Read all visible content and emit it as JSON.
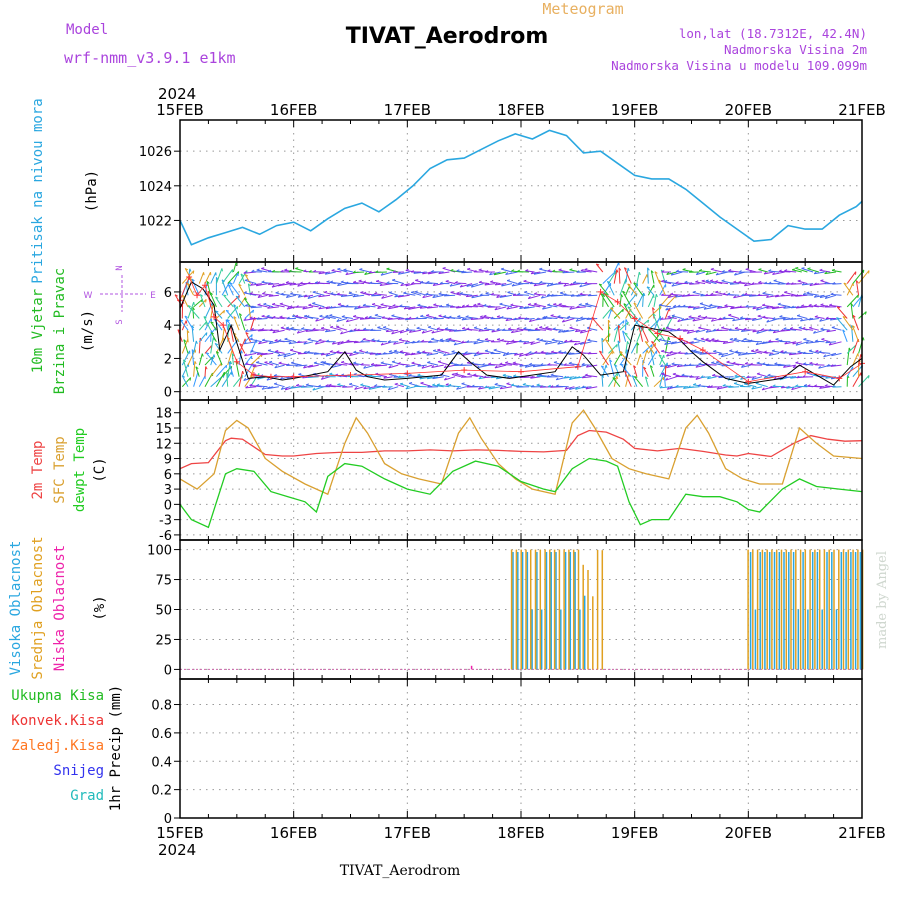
{
  "header": {
    "model_label": "Model",
    "model_name": "wrf-nmm_v3.9.1  e1km",
    "subtitle": "Meteogram",
    "station": "TIVAT_Aerodrom",
    "lonlat": "lon,lat (18.7312E, 42.4N)",
    "elevation": "Nadmorska Visina 2m",
    "model_elevation": "Nadmorska Visina u modelu 109.099m",
    "footer_station": "TIVAT_Aerodrom",
    "credit": "made by Angel"
  },
  "time_axis": {
    "year_top": "2024",
    "year_bottom": "2024",
    "labels": [
      "15FEB",
      "16FEB",
      "17FEB",
      "18FEB",
      "19FEB",
      "20FEB",
      "21FEB"
    ],
    "range_days": [
      0,
      6
    ]
  },
  "colors": {
    "pressure": "#2aa7e0",
    "wind_green": "#22bb22",
    "wind_purple": "#8a2be2",
    "wind_speed": "#000000",
    "wind_gust": "#ff3333",
    "temp2m": "#ee4444",
    "sfc_temp": "#d9a030",
    "dewpoint": "#22cc22",
    "cloud_high": "#2aa7e0",
    "cloud_mid": "#e0a020",
    "cloud_low": "#ee22aa",
    "rain_total": "#22bb22",
    "rain_conv": "#ee3333",
    "rain_frozen": "#ff7722",
    "snow": "#3333ee",
    "hail": "#22bbbb"
  },
  "chart_data": [
    {
      "type": "line",
      "panel": "pressure",
      "ylabel": [
        "Pritisak na nivou mora",
        "(hPa)"
      ],
      "yticks": [
        1022,
        1024,
        1026
      ],
      "ylim": [
        1019.6,
        1027.8
      ],
      "grid": true,
      "series": [
        {
          "x": [
            0,
            0.1,
            0.25,
            0.4,
            0.55,
            0.7,
            0.85,
            1.0,
            1.15,
            1.3,
            1.45,
            1.6,
            1.75,
            1.9,
            2.05,
            2.2,
            2.35,
            2.5,
            2.65,
            2.8,
            2.95,
            3.1,
            3.25,
            3.4,
            3.55,
            3.7,
            3.85,
            4.0,
            4.15,
            4.3,
            4.45,
            4.6,
            4.75,
            4.9,
            5.05,
            5.2,
            5.35,
            5.5,
            5.65,
            5.8,
            5.95,
            6.0
          ],
          "values": [
            1022,
            1020.6,
            1021.0,
            1021.3,
            1021.6,
            1021.2,
            1021.7,
            1021.9,
            1021.4,
            1022.1,
            1022.7,
            1023.0,
            1022.5,
            1023.2,
            1024.0,
            1025.0,
            1025.5,
            1025.6,
            1026.1,
            1026.6,
            1027.0,
            1026.7,
            1027.2,
            1026.9,
            1025.9,
            1026.0,
            1025.3,
            1024.6,
            1024.4,
            1024.4,
            1023.8,
            1023.0,
            1022.2,
            1021.5,
            1020.8,
            1020.9,
            1021.7,
            1021.5,
            1021.5,
            1022.3,
            1022.8,
            1023.1
          ]
        }
      ]
    },
    {
      "type": "line",
      "panel": "wind",
      "ylabel": [
        "10m Vjetar",
        "Brzina i Pravac",
        "(m/s)"
      ],
      "compass": {
        "n": "N",
        "s": "S",
        "e": "E",
        "w": "W"
      },
      "yticks": [
        0,
        2,
        4,
        6
      ],
      "ylim": [
        -0.5,
        7.8
      ],
      "grid": true,
      "series": [
        {
          "name": "speed",
          "x": [
            0,
            0.1,
            0.2,
            0.3,
            0.35,
            0.45,
            0.6,
            0.75,
            0.9,
            1.0,
            1.3,
            1.45,
            1.55,
            1.65,
            1.8,
            2.0,
            2.3,
            2.45,
            2.55,
            2.7,
            2.9,
            3.0,
            3.3,
            3.45,
            3.55,
            3.7,
            3.9,
            4.0,
            4.3,
            4.4,
            4.5,
            4.6,
            4.8,
            5.0,
            5.3,
            5.45,
            5.55,
            5.75,
            5.9,
            6.0
          ],
          "values": [
            5.0,
            6.6,
            6.2,
            5.2,
            2.5,
            4.0,
            0.8,
            0.9,
            0.7,
            0.8,
            1.2,
            2.4,
            1.3,
            0.9,
            0.7,
            0.8,
            1.0,
            2.4,
            1.8,
            1.0,
            0.8,
            0.9,
            1.2,
            2.7,
            2.2,
            1.0,
            1.2,
            4.0,
            3.6,
            3.1,
            2.4,
            1.8,
            0.8,
            0.5,
            0.8,
            1.6,
            1.2,
            0.4,
            1.5,
            2.0
          ]
        },
        {
          "name": "gust",
          "x": [
            0,
            0.08,
            0.15,
            0.22,
            0.3,
            0.38,
            0.5,
            0.65,
            0.8,
            1.0,
            1.5,
            2.0,
            2.5,
            3.0,
            3.5,
            3.7,
            3.85,
            4.0,
            4.2,
            4.4,
            4.6,
            5.0,
            5.5,
            5.8,
            6.0
          ],
          "values": [
            5.5,
            6.9,
            5.8,
            6.4,
            4.5,
            4.0,
            1.8,
            1.0,
            0.9,
            0.9,
            1.0,
            1.1,
            1.3,
            1.2,
            1.5,
            6.0,
            5.4,
            4.4,
            3.5,
            3.2,
            2.5,
            0.6,
            1.2,
            0.8,
            1.7
          ]
        }
      ]
    },
    {
      "type": "line",
      "panel": "temperature",
      "ylabel": [
        "2m Temp",
        "SFC Temp",
        "dewpt Temp",
        "(C)"
      ],
      "yticks": [
        -6,
        -3,
        0,
        3,
        6,
        9,
        12,
        15,
        18
      ],
      "ylim": [
        -7,
        20.5
      ],
      "grid": true,
      "series": [
        {
          "name": "2m Temp",
          "x": [
            0,
            0.1,
            0.25,
            0.4,
            0.45,
            0.55,
            0.75,
            0.9,
            1.0,
            1.2,
            1.4,
            1.6,
            1.8,
            2.0,
            2.2,
            2.4,
            2.6,
            2.8,
            3.0,
            3.2,
            3.4,
            3.5,
            3.6,
            3.75,
            3.9,
            4.0,
            4.2,
            4.4,
            4.6,
            4.8,
            4.9,
            5.0,
            5.2,
            5.4,
            5.55,
            5.7,
            5.85,
            6.0
          ],
          "values": [
            7.0,
            8.0,
            8.2,
            12.5,
            13.0,
            12.8,
            9.8,
            9.5,
            9.5,
            10.0,
            10.2,
            10.2,
            10.5,
            10.5,
            10.7,
            10.5,
            10.7,
            10.6,
            10.4,
            10.3,
            10.6,
            13.5,
            14.5,
            14.2,
            12.8,
            11.0,
            10.5,
            11.0,
            10.4,
            9.7,
            9.5,
            10.0,
            9.4,
            12.0,
            13.5,
            12.8,
            12.4,
            12.5
          ]
        },
        {
          "name": "SFC Temp",
          "x": [
            0,
            0.15,
            0.3,
            0.4,
            0.5,
            0.6,
            0.75,
            0.9,
            1.1,
            1.3,
            1.45,
            1.55,
            1.65,
            1.8,
            1.95,
            2.1,
            2.3,
            2.45,
            2.55,
            2.65,
            2.8,
            2.95,
            3.1,
            3.3,
            3.45,
            3.55,
            3.65,
            3.8,
            3.95,
            4.1,
            4.3,
            4.45,
            4.55,
            4.65,
            4.8,
            4.95,
            5.1,
            5.3,
            5.45,
            5.6,
            5.75,
            6.0
          ],
          "values": [
            5.0,
            3.0,
            6.0,
            14.5,
            16.5,
            15.0,
            9.0,
            6.5,
            4.0,
            2.0,
            12.0,
            17.0,
            14.0,
            8.0,
            6.0,
            5.0,
            4.0,
            14.0,
            17.0,
            13.0,
            8.0,
            5.0,
            3.0,
            2.0,
            16.0,
            18.5,
            15.0,
            9.0,
            7.0,
            6.0,
            5.0,
            15.0,
            17.5,
            14.0,
            7.0,
            5.0,
            4.0,
            4.0,
            15.0,
            12.0,
            9.5,
            9.0
          ]
        },
        {
          "name": "dewpt Temp",
          "x": [
            0,
            0.1,
            0.25,
            0.4,
            0.5,
            0.65,
            0.8,
            0.95,
            1.1,
            1.2,
            1.3,
            1.45,
            1.6,
            1.8,
            2.0,
            2.2,
            2.4,
            2.6,
            2.8,
            3.0,
            3.2,
            3.3,
            3.45,
            3.6,
            3.75,
            3.85,
            3.95,
            4.05,
            4.15,
            4.3,
            4.45,
            4.6,
            4.75,
            4.9,
            5.0,
            5.1,
            5.3,
            5.45,
            5.6,
            5.8,
            6.0
          ],
          "values": [
            0.0,
            -3.0,
            -4.5,
            6.0,
            7.0,
            6.5,
            2.5,
            1.5,
            0.5,
            -1.5,
            5.5,
            8.0,
            7.5,
            5.0,
            3.0,
            2.0,
            6.5,
            8.5,
            7.5,
            4.5,
            3.0,
            2.5,
            7.0,
            9.0,
            8.5,
            7.5,
            0.5,
            -4.0,
            -3.0,
            -3.0,
            2.0,
            1.5,
            1.5,
            0.5,
            -1.0,
            -1.5,
            3.0,
            5.0,
            3.5,
            3.0,
            2.5
          ]
        }
      ]
    },
    {
      "type": "bar",
      "panel": "clouds",
      "ylabel": [
        "Visoka Oblacnost",
        "Srednja Oblacnost",
        "Niska Oblacnost",
        "(%)"
      ],
      "yticks": [
        0,
        25,
        50,
        75,
        100
      ],
      "ylim": [
        -8,
        108
      ],
      "grid": true,
      "series": [
        {
          "name": "Visoka Oblacnost",
          "x_range": [
            [
              2.93,
              3.6
            ],
            [
              5.02,
              6.0
            ]
          ],
          "value": 98
        },
        {
          "name": "Srednja Oblacnost",
          "x_range": [
            [
              2.9,
              3.7
            ],
            [
              4.98,
              6.0
            ]
          ],
          "value": 100
        },
        {
          "name": "Niska Oblacnost",
          "x_range": [
            [
              2.53,
              2.55
            ]
          ],
          "value": 3
        }
      ]
    },
    {
      "type": "line",
      "panel": "precip",
      "ylabel": [
        "1hr Precip (mm)"
      ],
      "legend": [
        "Ukupna Kisa",
        "Konvek.Kisa",
        "Zaledj.Kisa",
        "Snijeg",
        "Grad"
      ],
      "yticks": [
        0,
        0.2,
        0.4,
        0.6,
        0.8
      ],
      "ylim": [
        0,
        0.98
      ],
      "grid": true,
      "series": []
    }
  ]
}
